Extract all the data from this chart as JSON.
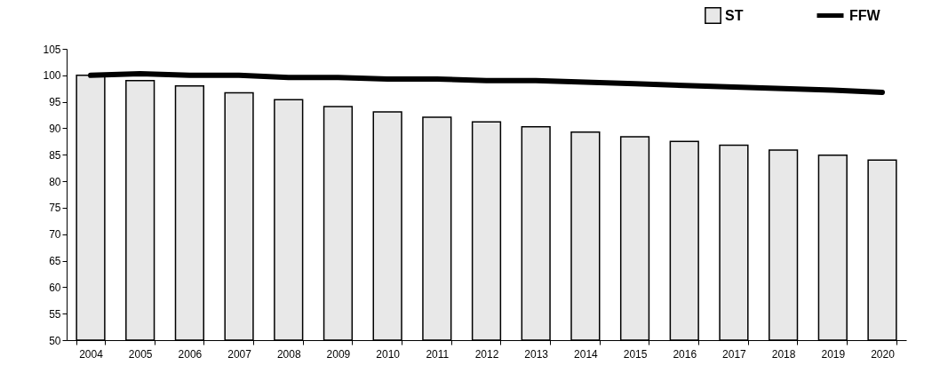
{
  "chart_data": {
    "type": "bar",
    "categories": [
      "2004",
      "2005",
      "2006",
      "2007",
      "2008",
      "2009",
      "2010",
      "2011",
      "2012",
      "2013",
      "2014",
      "2015",
      "2016",
      "2017",
      "2018",
      "2019",
      "2020"
    ],
    "series": [
      {
        "name": "ST",
        "type": "bar",
        "color": "#e8e8e8",
        "values": [
          100,
          99,
          98,
          96.7,
          95.4,
          94.1,
          93.1,
          92.1,
          91.2,
          90.3,
          89.3,
          88.4,
          87.5,
          86.8,
          85.9,
          84.9,
          84.0
        ]
      },
      {
        "name": "FFW",
        "type": "line",
        "color": "#000000",
        "values": [
          100,
          100.3,
          100,
          100,
          99.6,
          99.6,
          99.3,
          99.3,
          99,
          99,
          98.7,
          98.4,
          98.1,
          97.8,
          97.5,
          97.2,
          96.8
        ]
      }
    ],
    "ylim": [
      50,
      105
    ],
    "yticks": [
      50,
      55,
      60,
      65,
      70,
      75,
      80,
      85,
      90,
      95,
      100,
      105
    ],
    "grid": false,
    "legend": "top right"
  }
}
